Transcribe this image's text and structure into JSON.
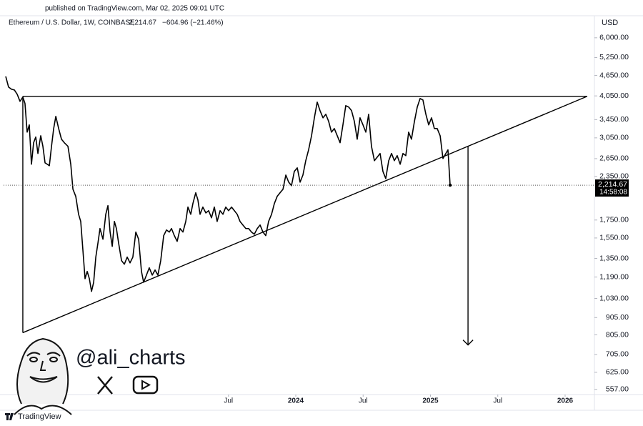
{
  "chart_data": {
    "type": "line",
    "published": "published on TradingView.com, Mar 02, 2025 09:01 UTC",
    "symbol": "Ethereum / U.S. Dollar, 1W, COINBASE",
    "change": "−604.96 (−21.46%)",
    "currency": "USD",
    "watermark": "@ali_charts",
    "brand": "TradingView",
    "color": "#000000",
    "log": true,
    "grid": false,
    "xlim": [
      2021.83,
      2026.207
    ],
    "ylim": [
      530,
      6700
    ],
    "xticks": [
      {
        "value": 2023.5,
        "label": "Jul"
      },
      2024,
      {
        "value": 2024.5,
        "label": "Jul"
      },
      2025,
      {
        "value": 2025.5,
        "label": "Jul"
      },
      2026
    ],
    "yticks": [
      {
        "value": 6000,
        "label": "6,000.00"
      },
      {
        "value": 5250,
        "label": "5,250.00"
      },
      {
        "value": 4650,
        "label": "4,650.00"
      },
      {
        "value": 4050,
        "label": "4,050.00"
      },
      {
        "value": 3450,
        "label": "3,450.00"
      },
      {
        "value": 3050,
        "label": "3,050.00"
      },
      {
        "value": 2650,
        "label": "2,650.00"
      },
      {
        "value": 2350,
        "label": "2,350.00"
      },
      {
        "value": 1750,
        "label": "1,750.00"
      },
      {
        "value": 1550,
        "label": "1,550.00"
      },
      {
        "value": 1350,
        "label": "1,350.00"
      },
      {
        "value": 1190,
        "label": "1,190.00"
      },
      {
        "value": 1030,
        "label": "1,030.00"
      },
      {
        "value": 905,
        "label": "905.00"
      },
      {
        "value": 805,
        "label": "805.00"
      },
      {
        "value": 705,
        "label": "705.00"
      },
      {
        "value": 625,
        "label": "625.00"
      },
      {
        "value": 557,
        "label": "557.00"
      }
    ],
    "last": {
      "value": 2214.67,
      "label": "2,214.67",
      "countdown": "14:58:08"
    },
    "x": [
      2021.846,
      2021.867,
      2021.889,
      2021.91,
      2021.931,
      2021.952,
      2021.973,
      2021.989,
      2022.005,
      2022.021,
      2022.037,
      2022.053,
      2022.069,
      2022.085,
      2022.106,
      2022.122,
      2022.138,
      2022.154,
      2022.17,
      2022.186,
      2022.202,
      2022.218,
      2022.239,
      2022.26,
      2022.281,
      2022.308,
      2022.329,
      2022.345,
      2022.366,
      2022.387,
      2022.403,
      2022.419,
      2022.435,
      2022.451,
      2022.467,
      2022.483,
      2022.499,
      2022.515,
      2022.531,
      2022.546,
      2022.568,
      2022.589,
      2022.605,
      2022.621,
      2022.637,
      2022.653,
      2022.668,
      2022.684,
      2022.706,
      2022.727,
      2022.748,
      2022.769,
      2022.79,
      2022.812,
      2022.833,
      2022.854,
      2022.87,
      2022.891,
      2022.912,
      2022.934,
      2022.955,
      2022.976,
      2022.997,
      2023.019,
      2023.04,
      2023.061,
      2023.077,
      2023.098,
      2023.119,
      2023.141,
      2023.162,
      2023.183,
      2023.199,
      2023.22,
      2023.236,
      2023.257,
      2023.273,
      2023.289,
      2023.31,
      2023.332,
      2023.353,
      2023.374,
      2023.395,
      2023.416,
      2023.438,
      2023.459,
      2023.48,
      2023.501,
      2023.523,
      2023.544,
      2023.565,
      2023.586,
      2023.607,
      2023.629,
      2023.65,
      2023.671,
      2023.692,
      2023.714,
      2023.735,
      2023.756,
      2023.777,
      2023.798,
      2023.82,
      2023.841,
      2023.862,
      2023.883,
      2023.905,
      2023.926,
      2023.947,
      2023.968,
      2023.989,
      2024.011,
      2024.032,
      2024.053,
      2024.074,
      2024.095,
      2024.117,
      2024.138,
      2024.159,
      2024.18,
      2024.202,
      2024.223,
      2024.244,
      2024.265,
      2024.286,
      2024.308,
      2024.329,
      2024.35,
      2024.371,
      2024.393,
      2024.414,
      2024.435,
      2024.456,
      2024.477,
      2024.499,
      2024.52,
      2024.541,
      2024.562,
      2024.584,
      2024.605,
      2024.626,
      2024.647,
      2024.668,
      2024.69,
      2024.711,
      2024.732,
      2024.753,
      2024.775,
      2024.796,
      2024.817,
      2024.838,
      2024.859,
      2024.881,
      2024.902,
      2024.923,
      2024.944,
      2024.966,
      2024.987,
      2025.008,
      2025.029,
      2025.05,
      2025.072,
      2025.093,
      2025.114,
      2025.13,
      2025.146
    ],
    "values": [
      4621,
      4300,
      4236,
      4216,
      4097,
      3904,
      4018,
      3848,
      3170,
      3329,
      2552,
      2951,
      3067,
      2744,
      3094,
      2880,
      2576,
      2552,
      2527,
      2880,
      3248,
      3527,
      3248,
      3022,
      2951,
      2880,
      2552,
      2155,
      2054,
      1819,
      1733,
      1429,
      1177,
      1236,
      1177,
      1080,
      1149,
      1362,
      1500,
      1652,
      1537,
      1819,
      1929,
      1613,
      1464,
      1733,
      1652,
      1500,
      1330,
      1298,
      1362,
      1310,
      1362,
      1613,
      1537,
      1236,
      1149,
      1206,
      1267,
      1206,
      1248,
      1206,
      1330,
      1575,
      1636,
      1613,
      1652,
      1575,
      1515,
      1652,
      1613,
      1733,
      1910,
      1819,
      1957,
      2104,
      2005,
      1819,
      1910,
      1836,
      1864,
      1776,
      1910,
      1733,
      1864,
      1819,
      1910,
      1864,
      1910,
      1864,
      1819,
      1733,
      1692,
      1652,
      1652,
      1613,
      1590,
      1652,
      1692,
      1613,
      1575,
      1733,
      1819,
      1957,
      2054,
      2104,
      2155,
      2372,
      2261,
      2207,
      2431,
      2490,
      2261,
      2372,
      2614,
      2812,
      3094,
      3492,
      3883,
      3666,
      3492,
      3577,
      3409,
      3170,
      3248,
      3094,
      2951,
      3329,
      3791,
      3755,
      3666,
      3409,
      3022,
      3492,
      3329,
      3170,
      3577,
      2880,
      2614,
      2678,
      2744,
      2431,
      2316,
      2614,
      2744,
      2614,
      2704,
      2552,
      2744,
      2704,
      3170,
      3022,
      3409,
      3755,
      3978,
      3941,
      3577,
      3329,
      3492,
      3248,
      3248,
      3094,
      2652,
      2744,
      2812,
      2214.67
    ],
    "drawings": [
      {
        "x": [
          2021.973,
          2026.164
        ],
        "y": [
          4038,
          4038
        ],
        "arrow": false
      },
      {
        "x": [
          2021.973,
          2026.164
        ],
        "y": [
          817,
          4038
        ],
        "arrow": false
      },
      {
        "x": [
          2021.973,
          2021.973
        ],
        "y": [
          4038,
          817
        ],
        "arrow": false
      },
      {
        "x": [
          2025.279,
          2025.279
        ],
        "y": [
          2880,
          752
        ],
        "arrow": true
      }
    ]
  }
}
